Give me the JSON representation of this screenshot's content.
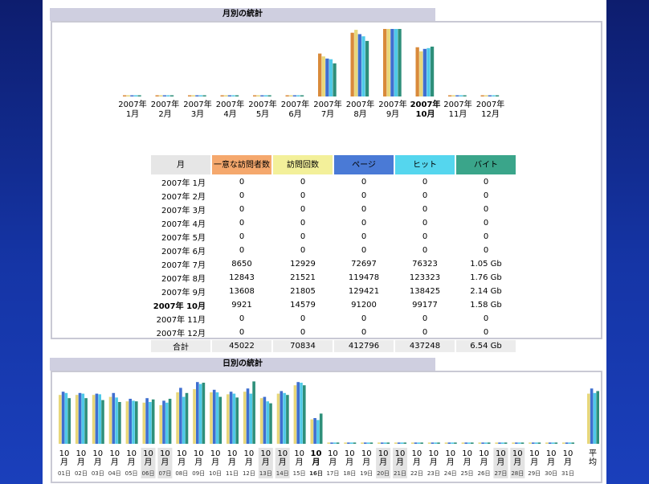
{
  "monthly_section": {
    "title": "月別の統計",
    "table": {
      "headers": [
        "月",
        "一意な訪問者数",
        "訪問回数",
        "ページ",
        "ヒット",
        "バイト"
      ],
      "header_colors": [
        "#e6e6e6",
        "#f5a86d",
        "#f3f09a",
        "#4a7ad6",
        "#55d6ee",
        "#3aa58a"
      ],
      "rows": [
        [
          "2007年 1月",
          "0",
          "0",
          "0",
          "0",
          "0"
        ],
        [
          "2007年 2月",
          "0",
          "0",
          "0",
          "0",
          "0"
        ],
        [
          "2007年 3月",
          "0",
          "0",
          "0",
          "0",
          "0"
        ],
        [
          "2007年 4月",
          "0",
          "0",
          "0",
          "0",
          "0"
        ],
        [
          "2007年 5月",
          "0",
          "0",
          "0",
          "0",
          "0"
        ],
        [
          "2007年 6月",
          "0",
          "0",
          "0",
          "0",
          "0"
        ],
        [
          "2007年 7月",
          "8650",
          "12929",
          "72697",
          "76323",
          "1.05 Gb"
        ],
        [
          "2007年 8月",
          "12843",
          "21521",
          "119478",
          "123323",
          "1.76 Gb"
        ],
        [
          "2007年 9月",
          "13608",
          "21805",
          "129421",
          "138425",
          "2.14 Gb"
        ],
        [
          "2007年 10月",
          "9921",
          "14579",
          "91200",
          "99177",
          "1.58 Gb"
        ],
        [
          "2007年 11月",
          "0",
          "0",
          "0",
          "0",
          "0"
        ],
        [
          "2007年 12月",
          "0",
          "0",
          "0",
          "0",
          "0"
        ]
      ],
      "current_row": 9,
      "total": [
        "合計",
        "45022",
        "70834",
        "412796",
        "437248",
        "6.54 Gb"
      ]
    }
  },
  "daily_section": {
    "title": "日別の統計"
  },
  "chart_data": [
    {
      "type": "bar",
      "categories": [
        "2007年 1月",
        "2007年 2月",
        "2007年 3月",
        "2007年 4月",
        "2007年 5月",
        "2007年 6月",
        "2007年 7月",
        "2007年 8月",
        "2007年 9月",
        "2007年 10月",
        "2007年 11月",
        "2007年 12月"
      ],
      "category_lines": [
        [
          "2007年",
          "1月"
        ],
        [
          "2007年",
          "2月"
        ],
        [
          "2007年",
          "3月"
        ],
        [
          "2007年",
          "4月"
        ],
        [
          "2007年",
          "5月"
        ],
        [
          "2007年",
          "6月"
        ],
        [
          "2007年",
          "7月"
        ],
        [
          "2007年",
          "8月"
        ],
        [
          "2007年",
          "9月"
        ],
        [
          "2007年",
          "10月"
        ],
        [
          "2007年",
          "11月"
        ],
        [
          "2007年",
          "12月"
        ]
      ],
      "highlight": 9,
      "series": [
        {
          "color": "#d98a3a",
          "values": [
            0,
            0,
            0,
            0,
            0,
            0,
            8650,
            12843,
            13608,
            9921,
            0,
            0
          ]
        },
        {
          "color": "#e8d77a",
          "values": [
            0,
            0,
            0,
            0,
            0,
            0,
            12929,
            21521,
            21805,
            14579,
            0,
            0
          ]
        },
        {
          "color": "#3f6fd0",
          "values": [
            0,
            0,
            0,
            0,
            0,
            0,
            72697,
            119478,
            129421,
            91200,
            0,
            0
          ]
        },
        {
          "color": "#4fc9e8",
          "values": [
            0,
            0,
            0,
            0,
            0,
            0,
            76323,
            123323,
            138425,
            99177,
            0,
            0
          ]
        },
        {
          "color": "#2e8f7a",
          "values": [
            0,
            0,
            0,
            0,
            0,
            0,
            1.05,
            1.76,
            2.14,
            1.58,
            0,
            0
          ]
        }
      ]
    },
    {
      "type": "bar",
      "categories": [
        "01日",
        "02日",
        "03日",
        "04日",
        "05日",
        "06日",
        "07日",
        "08日",
        "09日",
        "10日",
        "11日",
        "12日",
        "13日",
        "14日",
        "15日",
        "16日",
        "17日",
        "18日",
        "19日",
        "20日",
        "21日",
        "22日",
        "23日",
        "24日",
        "25日",
        "26日",
        "27日",
        "28日",
        "29日",
        "30日",
        "31日",
        "平均"
      ],
      "month_label": [
        "10",
        "月"
      ],
      "average_label": [
        "平",
        "均"
      ],
      "weekend_days": [
        6,
        7,
        13,
        14,
        20,
        21,
        27,
        28
      ],
      "highlight": 16,
      "relative_heights": [
        [
          0.76,
          0.81,
          0.79,
          0.71
        ],
        [
          0.76,
          0.79,
          0.78,
          0.71
        ],
        [
          0.76,
          0.78,
          0.77,
          0.68
        ],
        [
          0.73,
          0.79,
          0.72,
          0.65
        ],
        [
          0.66,
          0.7,
          0.67,
          0.66
        ],
        [
          0.64,
          0.71,
          0.65,
          0.69
        ],
        [
          0.6,
          0.67,
          0.64,
          0.7
        ],
        [
          0.8,
          0.87,
          0.73,
          0.79
        ],
        [
          0.85,
          0.96,
          0.93,
          0.95
        ],
        [
          0.8,
          0.84,
          0.8,
          0.73
        ],
        [
          0.77,
          0.81,
          0.78,
          0.72
        ],
        [
          0.81,
          0.86,
          0.78,
          0.97
        ],
        [
          0.71,
          0.73,
          0.66,
          0.63
        ],
        [
          0.78,
          0.82,
          0.79,
          0.76
        ],
        [
          0.91,
          0.96,
          0.95,
          0.91
        ],
        [
          0.38,
          0.4,
          0.37,
          0.47
        ],
        [
          0.02,
          0.02,
          0.02,
          0.02
        ],
        [
          0.02,
          0.02,
          0.02,
          0.02
        ],
        [
          0.02,
          0.02,
          0.02,
          0.02
        ],
        [
          0.02,
          0.02,
          0.02,
          0.02
        ],
        [
          0.02,
          0.02,
          0.02,
          0.02
        ],
        [
          0.02,
          0.02,
          0.02,
          0.02
        ],
        [
          0.02,
          0.02,
          0.02,
          0.02
        ],
        [
          0.02,
          0.02,
          0.02,
          0.02
        ],
        [
          0.02,
          0.02,
          0.02,
          0.02
        ],
        [
          0.02,
          0.02,
          0.02,
          0.02
        ],
        [
          0.02,
          0.02,
          0.02,
          0.02
        ],
        [
          0.02,
          0.02,
          0.02,
          0.02
        ],
        [
          0.02,
          0.02,
          0.02,
          0.02
        ],
        [
          0.02,
          0.02,
          0.02,
          0.02
        ],
        [
          0.02,
          0.02,
          0.02,
          0.02
        ],
        [
          0.78,
          0.86,
          0.79,
          0.82
        ]
      ],
      "series_colors": [
        "#e8d77a",
        "#3f6fd0",
        "#4fc9e8",
        "#2e8f7a"
      ]
    }
  ]
}
